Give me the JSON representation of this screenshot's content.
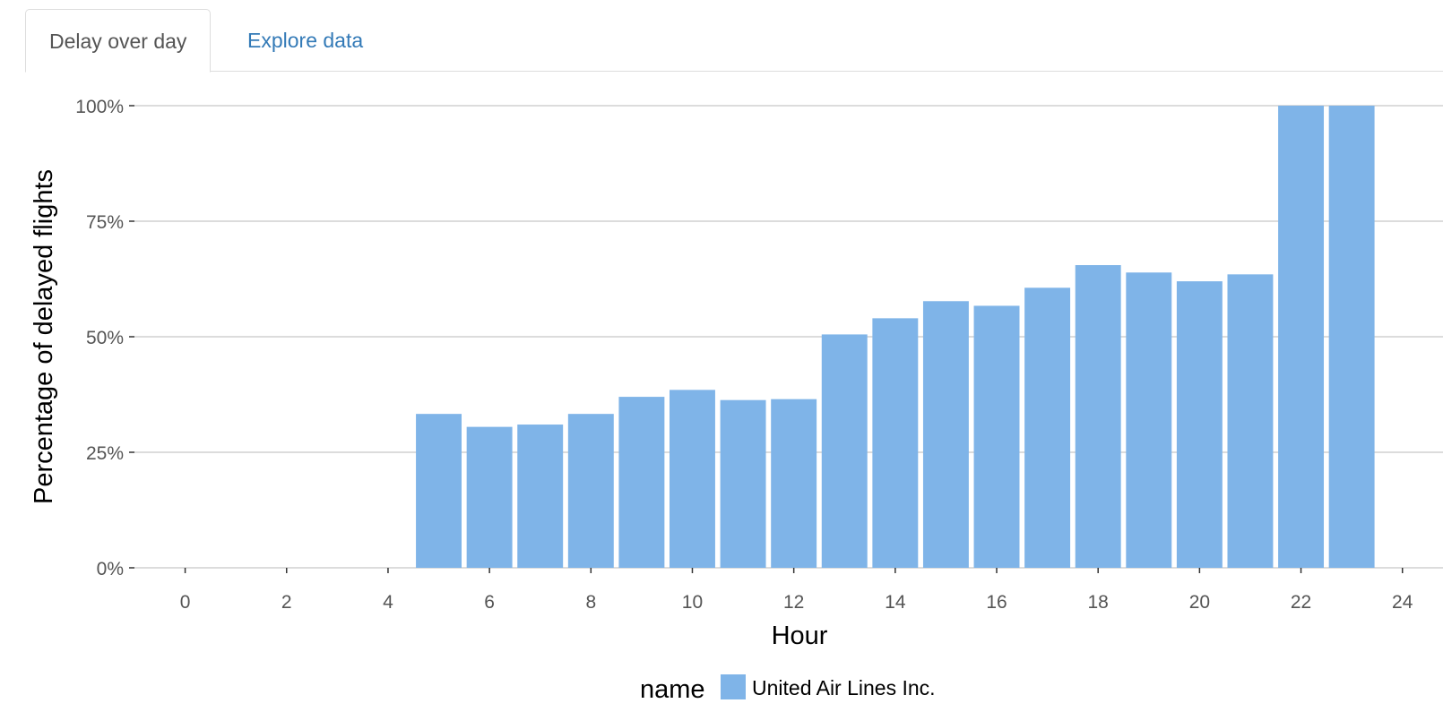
{
  "tabs": [
    {
      "label": "Delay over day",
      "active": true
    },
    {
      "label": "Explore data",
      "active": false
    }
  ],
  "chart_data": {
    "type": "bar",
    "title": "",
    "xlabel": "Hour",
    "ylabel": "Percentage of delayed flights",
    "x": [
      5,
      6,
      7,
      8,
      9,
      10,
      11,
      12,
      13,
      14,
      15,
      16,
      17,
      18,
      19,
      20,
      21,
      22,
      23
    ],
    "series": [
      {
        "name": "United Air Lines Inc.",
        "values": [
          0.333,
          0.305,
          0.31,
          0.333,
          0.37,
          0.385,
          0.363,
          0.365,
          0.505,
          0.54,
          0.577,
          0.567,
          0.606,
          0.655,
          0.639,
          0.62,
          0.635,
          1.0,
          1.0
        ]
      }
    ],
    "xlim": [
      -1,
      24.8
    ],
    "ylim": [
      0,
      1
    ],
    "xticks": [
      0,
      2,
      4,
      6,
      8,
      10,
      12,
      14,
      16,
      18,
      20,
      22,
      24
    ],
    "xtick_labels": [
      "0",
      "2",
      "4",
      "6",
      "8",
      "10",
      "12",
      "14",
      "16",
      "18",
      "20",
      "22",
      "24"
    ],
    "yticks": [
      0,
      0.25,
      0.5,
      0.75,
      1.0
    ],
    "ytick_labels": [
      "0%",
      "25%",
      "50%",
      "75%",
      "100%"
    ],
    "grid": true,
    "legend": {
      "title": "name",
      "position": "bottom"
    },
    "colors": {
      "bar": "#7fb4e8",
      "grid": "#dcdcdc",
      "tick": "#555555"
    }
  }
}
